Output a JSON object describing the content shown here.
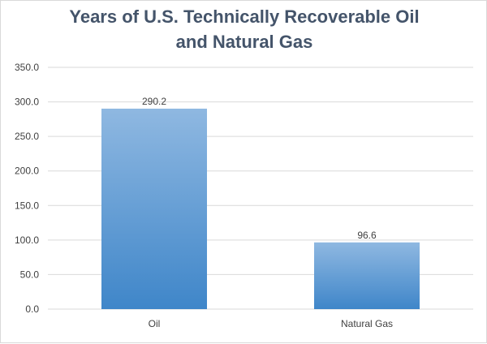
{
  "chart_data": {
    "type": "bar",
    "title_lines": [
      "Years of U.S. Technically Recoverable Oil",
      "and Natural Gas"
    ],
    "categories": [
      "Oil",
      "Natural Gas"
    ],
    "values": [
      290.2,
      96.6
    ],
    "data_labels": [
      "290.2",
      "96.6"
    ],
    "ylim": [
      0,
      350
    ],
    "y_ticks": [
      "0.0",
      "50.0",
      "100.0",
      "150.0",
      "200.0",
      "250.0",
      "300.0",
      "350.0"
    ],
    "gridlines": true,
    "legend": "none",
    "bar_color_top": "#8fb8e1",
    "bar_color_bottom": "#3f86c9"
  }
}
